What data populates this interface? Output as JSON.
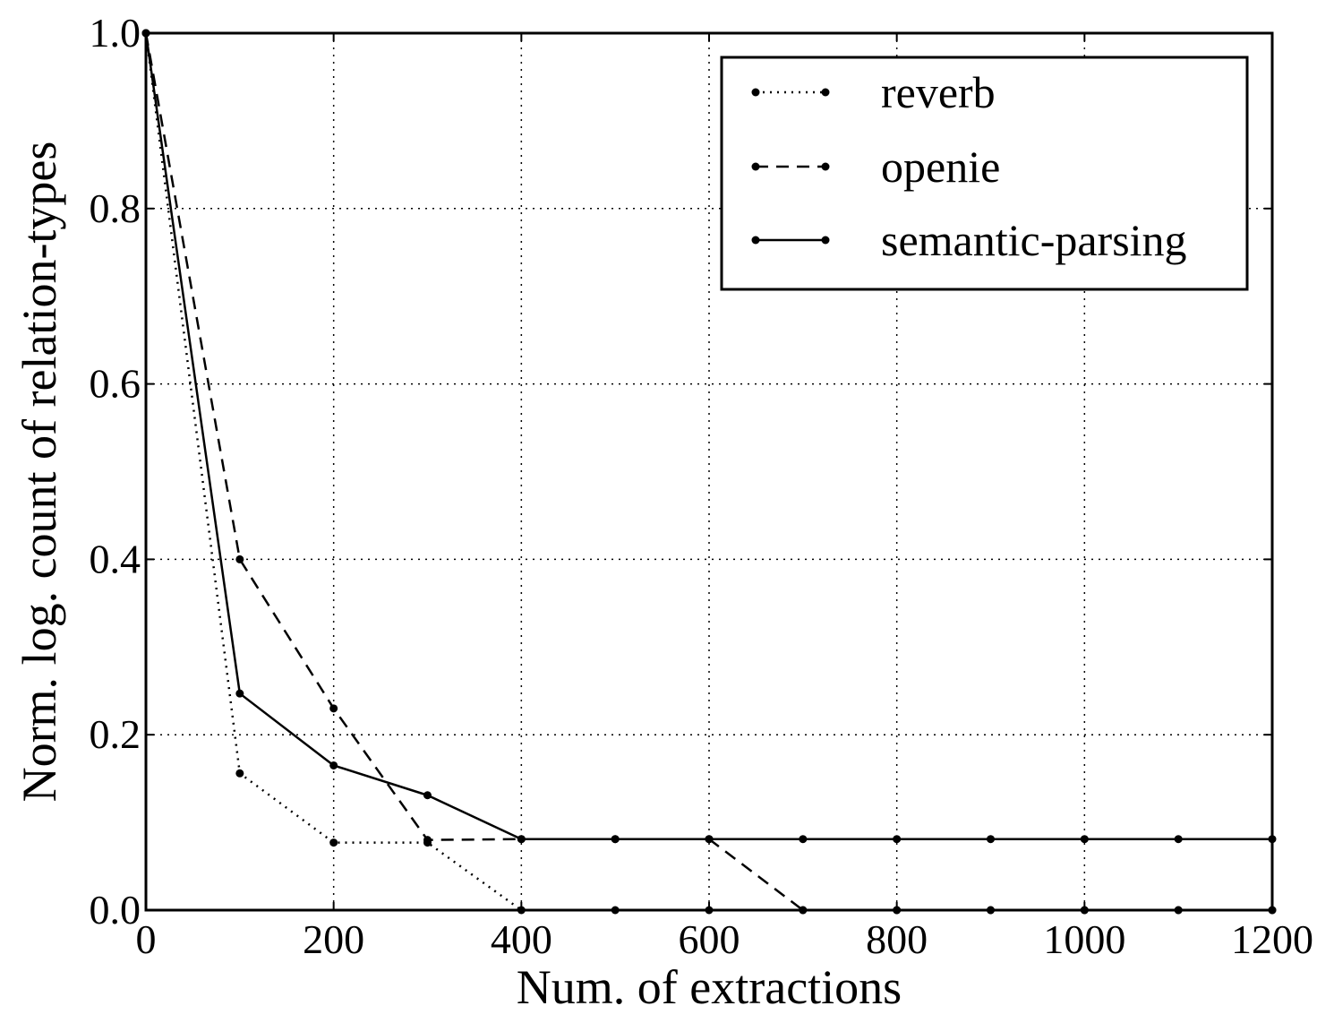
{
  "chart_data": {
    "type": "line",
    "xlabel": "Num. of extractions",
    "ylabel": "Norm. log. count of relation-types",
    "xlim": [
      0,
      1200
    ],
    "ylim": [
      0.0,
      1.0
    ],
    "x_ticks": [
      "0",
      "200",
      "400",
      "600",
      "800",
      "1000",
      "1200"
    ],
    "y_ticks": [
      "0.0",
      "0.2",
      "0.4",
      "0.6",
      "0.8",
      "1.0"
    ],
    "grid": true,
    "legend_position": "top-right",
    "x": [
      0,
      100,
      200,
      300,
      400,
      500,
      600,
      700,
      800,
      900,
      1000,
      1100,
      1200
    ],
    "series": [
      {
        "name": "reverb",
        "line_style": "dotted",
        "values": [
          1.0,
          0.156,
          0.077,
          0.077,
          0.0,
          0.0,
          0.0,
          0.0,
          0.0,
          0.0,
          0.0,
          0.0,
          0.0
        ]
      },
      {
        "name": "openie",
        "line_style": "dashed",
        "values": [
          1.0,
          0.4,
          0.23,
          0.08,
          0.081,
          0.081,
          0.081,
          0.0,
          0.0,
          0.0,
          0.0,
          0.0,
          0.0
        ]
      },
      {
        "name": "semantic-parsing",
        "line_style": "solid",
        "values": [
          1.0,
          0.247,
          0.165,
          0.131,
          0.081,
          0.081,
          0.081,
          0.081,
          0.081,
          0.081,
          0.081,
          0.081,
          0.081
        ]
      }
    ],
    "colors": {
      "line": "#000000",
      "grid": "#000000",
      "background": "#ffffff"
    }
  }
}
